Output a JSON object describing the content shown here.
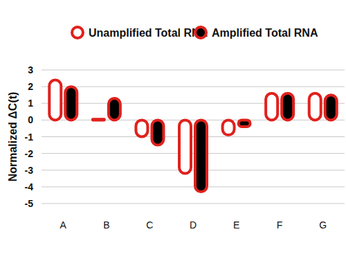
{
  "chart_data": {
    "type": "bar",
    "y_label": "Normalized ΔC(t)",
    "categories": [
      "A",
      "B",
      "C",
      "D",
      "E",
      "F",
      "G"
    ],
    "series": [
      {
        "name": "Unamplified Total RNA",
        "color": "#ffffff",
        "values": [
          2.4,
          0.05,
          -1.0,
          -3.2,
          -0.9,
          1.6,
          1.6
        ]
      },
      {
        "name": "Amplified Total RNA",
        "color": "#000000",
        "values": [
          2.0,
          1.3,
          -1.5,
          -4.3,
          -0.4,
          1.6,
          1.5
        ]
      }
    ],
    "ylim": [
      -5,
      3
    ],
    "yticks": [
      -5,
      -4,
      -3,
      -2,
      -1,
      0,
      1,
      2,
      3
    ],
    "grid": true,
    "legend": "top"
  }
}
